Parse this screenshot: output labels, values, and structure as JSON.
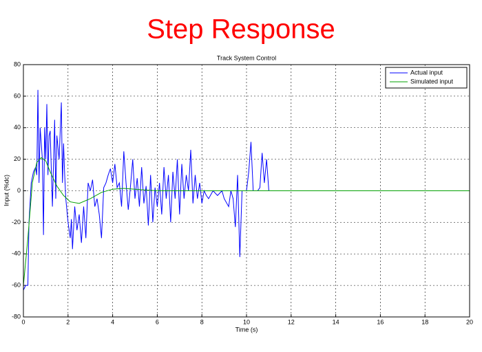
{
  "page_title": "Step Response",
  "chart_data": {
    "type": "line",
    "title": "Track System Control",
    "xlabel": "Time (s)",
    "ylabel": "Input (%dc)",
    "xlim": [
      0,
      20
    ],
    "ylim": [
      -80,
      80
    ],
    "xticks": [
      0,
      2,
      4,
      6,
      8,
      10,
      12,
      14,
      16,
      18,
      20
    ],
    "yticks": [
      -80,
      -60,
      -40,
      -20,
      0,
      20,
      40,
      60,
      80
    ],
    "grid": true,
    "legend": "top-right",
    "series": [
      {
        "name": "Actual input",
        "color": "#0000ff",
        "x": [
          0,
          0.1,
          0.2,
          0.25,
          0.35,
          0.45,
          0.55,
          0.6,
          0.65,
          0.7,
          0.75,
          0.8,
          0.85,
          0.9,
          0.95,
          1.0,
          1.05,
          1.1,
          1.15,
          1.2,
          1.3,
          1.4,
          1.45,
          1.5,
          1.6,
          1.7,
          1.75,
          1.8,
          1.85,
          1.9,
          2.0,
          2.1,
          2.15,
          2.2,
          2.3,
          2.4,
          2.5,
          2.6,
          2.7,
          2.8,
          2.9,
          3.0,
          3.1,
          3.2,
          3.3,
          3.4,
          3.5,
          3.6,
          3.7,
          3.8,
          3.9,
          4.0,
          4.1,
          4.2,
          4.3,
          4.4,
          4.5,
          4.6,
          4.7,
          4.8,
          4.9,
          5.0,
          5.1,
          5.2,
          5.3,
          5.4,
          5.5,
          5.6,
          5.7,
          5.8,
          5.9,
          6.0,
          6.1,
          6.2,
          6.3,
          6.4,
          6.5,
          6.6,
          6.7,
          6.8,
          6.9,
          7.0,
          7.1,
          7.2,
          7.3,
          7.4,
          7.5,
          7.6,
          7.7,
          7.8,
          7.9,
          8.0,
          8.1,
          8.2,
          8.3,
          8.5,
          8.7,
          8.9,
          9.0,
          9.2,
          9.3,
          9.4,
          9.5,
          9.6,
          9.7,
          9.8,
          10.0,
          10.1,
          10.2,
          10.3,
          10.5,
          10.6,
          10.7,
          10.8,
          10.9,
          11.0,
          20
        ],
        "values": [
          -63,
          -60,
          -60,
          -20,
          5,
          12,
          15,
          10,
          64,
          5,
          40,
          30,
          20,
          -28,
          40,
          20,
          55,
          10,
          35,
          38,
          -10,
          45,
          -5,
          35,
          20,
          56,
          5,
          30,
          10,
          -5,
          -20,
          -30,
          -18,
          -37,
          -10,
          -25,
          -15,
          -33,
          -10,
          -30,
          5,
          0,
          7,
          -10,
          -5,
          -15,
          -30,
          2,
          5,
          10,
          14,
          5,
          17,
          2,
          5,
          -10,
          25,
          5,
          -12,
          3,
          20,
          -5,
          8,
          -10,
          15,
          -8,
          3,
          -22,
          10,
          -20,
          2,
          -10,
          5,
          -15,
          15,
          -5,
          10,
          -20,
          12,
          -5,
          20,
          -15,
          17,
          -5,
          10,
          0,
          26,
          -8,
          10,
          -5,
          5,
          -8,
          0,
          -3,
          -5,
          0,
          -3,
          0,
          -5,
          -10,
          0,
          -5,
          -23,
          10,
          -42,
          0,
          0,
          12,
          31,
          0,
          0,
          2,
          24,
          5,
          20,
          0,
          0
        ]
      },
      {
        "name": "Simulated input",
        "color": "#00a000",
        "x": [
          0,
          0.2,
          0.4,
          0.6,
          0.8,
          1.0,
          1.2,
          1.5,
          1.8,
          2.1,
          2.5,
          3.0,
          3.5,
          4.0,
          4.5,
          5.0,
          6.0,
          20
        ],
        "values": [
          -60,
          -30,
          5,
          18,
          21,
          19,
          12,
          3,
          -3,
          -7,
          -8,
          -5,
          -1,
          1,
          1.5,
          1,
          0,
          0
        ]
      }
    ]
  }
}
